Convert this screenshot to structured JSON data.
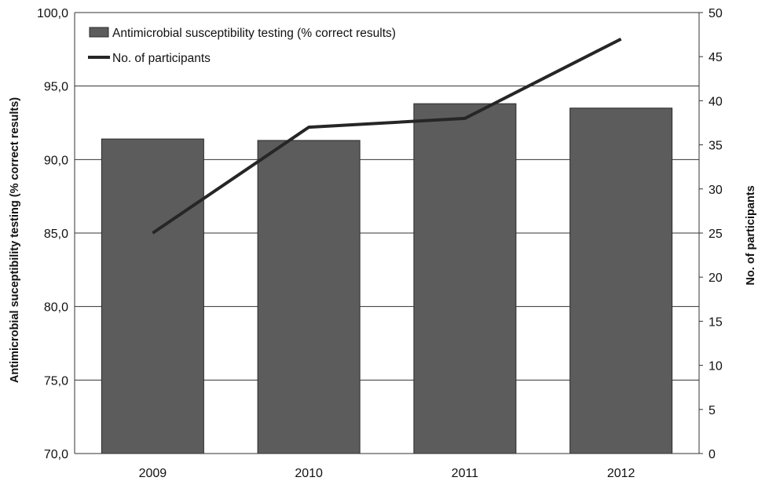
{
  "chart_data": {
    "type": "bar",
    "categories": [
      "2009",
      "2010",
      "2011",
      "2012"
    ],
    "series": [
      {
        "name": "Antimicrobial susceptibility testing (% correct results)",
        "type": "bar",
        "axis": "left",
        "values": [
          91.4,
          91.3,
          93.8,
          93.5
        ]
      },
      {
        "name": "No. of participants",
        "type": "line",
        "axis": "right",
        "values": [
          25,
          37,
          38,
          47
        ]
      }
    ],
    "ylabel": "Antimicrobial suceptibility testing (% correct results)",
    "ylabel_right": "No. of participants",
    "xlabel": "",
    "ylim": [
      70,
      100
    ],
    "ylim_right": [
      0,
      50
    ],
    "yticks": [
      "70,0",
      "75,0",
      "80,0",
      "85,0",
      "90,0",
      "95,0",
      "100,0"
    ],
    "yticks_right": [
      "0",
      "5",
      "10",
      "15",
      "20",
      "25",
      "30",
      "35",
      "40",
      "45",
      "50"
    ],
    "grid": true,
    "legend_position": "top-left",
    "colors": {
      "bar": "#5c5c5c",
      "bar_edge": "#2a2a2a",
      "line": "#262626",
      "grid": "#333333"
    }
  }
}
